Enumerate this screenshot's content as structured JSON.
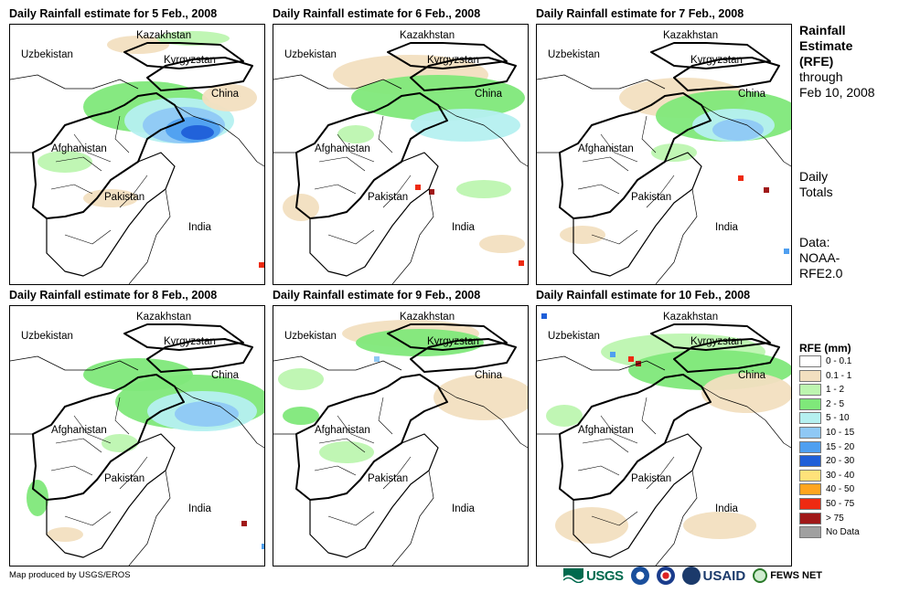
{
  "panels": [
    {
      "title": "Daily Rainfall estimate for 5 Feb., 2008",
      "day": 5
    },
    {
      "title": "Daily Rainfall estimate for 6 Feb., 2008",
      "day": 6
    },
    {
      "title": "Daily Rainfall estimate for 7 Feb., 2008",
      "day": 7
    },
    {
      "title": "Daily Rainfall estimate for 8 Feb., 2008",
      "day": 8
    },
    {
      "title": "Daily Rainfall estimate for 9 Feb., 2008",
      "day": 9
    },
    {
      "title": "Daily Rainfall estimate for 10 Feb., 2008",
      "day": 10
    }
  ],
  "map_labels": {
    "kazakhstan": "Kazakhstan",
    "uzbekistan": "Uzbekistan",
    "kyrgyzstan": "Kyrgyzstan",
    "china": "China",
    "afghanistan": "Afghanistan",
    "pakistan": "Pakistan",
    "india": "India"
  },
  "side": {
    "title_line1": "Rainfall",
    "title_line2": "Estimate",
    "title_line3": "(RFE)",
    "through": "through",
    "date": "Feb 10, 2008",
    "daily1": "Daily",
    "daily2": "Totals",
    "data1": "Data:",
    "data2": "NOAA-",
    "data3": "RFE2.0"
  },
  "legend": {
    "title": "RFE (mm)",
    "items": [
      {
        "label": "0 - 0.1",
        "color": "#ffffff"
      },
      {
        "label": "0.1 - 1",
        "color": "#f2dfc0"
      },
      {
        "label": "1 - 2",
        "color": "#bdf5b0"
      },
      {
        "label": "2 - 5",
        "color": "#7fe87a"
      },
      {
        "label": "5 - 10",
        "color": "#b5f0f0"
      },
      {
        "label": "10 - 15",
        "color": "#8fc8f5"
      },
      {
        "label": "15 - 20",
        "color": "#4f9ff0"
      },
      {
        "label": "20 - 30",
        "color": "#1f5fd8"
      },
      {
        "label": "30 - 40",
        "color": "#ffe27a"
      },
      {
        "label": "40 - 50",
        "color": "#ffa51f"
      },
      {
        "label": "50 - 75",
        "color": "#ee2a12"
      },
      {
        "label": "> 75",
        "color": "#a01818"
      },
      {
        "label": "No Data",
        "color": "#a0a0a0"
      }
    ]
  },
  "footer": "Map produced by USGS/EROS",
  "logos": {
    "usgs": "USGS",
    "usaid": "USAID",
    "fews": "FEWS NET"
  }
}
